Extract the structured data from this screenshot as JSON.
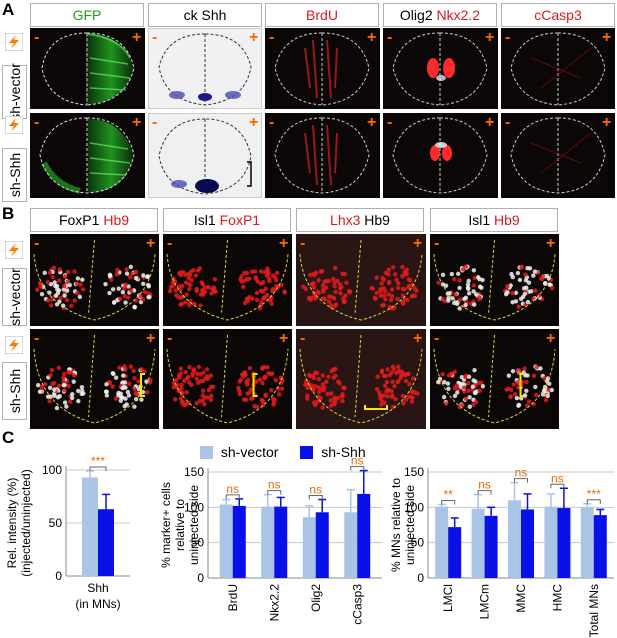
{
  "panels": {
    "A": "A",
    "B": "B",
    "C": "C"
  },
  "rows": {
    "vector": "sh-vector",
    "shh": "sh-Shh"
  },
  "signs": {
    "minus": "-",
    "plus": "+"
  },
  "panelA_headers": [
    {
      "parts": [
        {
          "t": "GFP",
          "c": "green"
        }
      ]
    },
    {
      "parts": [
        {
          "t": "ck Shh",
          "c": "black"
        }
      ]
    },
    {
      "parts": [
        {
          "t": "BrdU",
          "c": "red"
        }
      ]
    },
    {
      "parts": [
        {
          "t": "Olig2 ",
          "c": "black"
        },
        {
          "t": "Nkx2.2",
          "c": "red"
        }
      ]
    },
    {
      "parts": [
        {
          "t": "cCasp3",
          "c": "red"
        }
      ]
    }
  ],
  "panelB_headers": [
    {
      "parts": [
        {
          "t": "FoxP1 ",
          "c": "black"
        },
        {
          "t": "Hb9",
          "c": "red"
        }
      ]
    },
    {
      "parts": [
        {
          "t": "Isl1 ",
          "c": "black"
        },
        {
          "t": "FoxP1",
          "c": "red"
        }
      ]
    },
    {
      "parts": [
        {
          "t": "Lhx3 ",
          "c": "red"
        },
        {
          "t": "Hb9",
          "c": "black"
        }
      ]
    },
    {
      "parts": [
        {
          "t": "Isl1 ",
          "c": "black"
        },
        {
          "t": "Hb9",
          "c": "red"
        }
      ]
    }
  ],
  "legend": {
    "vector": "sh-vector",
    "shh": "sh-Shh"
  },
  "colors": {
    "vector": "#a9c4e4",
    "shh": "#0a10e8",
    "sig": "#e36c0a",
    "red": "#e0191d",
    "green": "#1aa01a"
  },
  "chart_data": [
    {
      "type": "bar",
      "ylabel": "Rel. intensity (%) (injected/uninjected)",
      "categories": [
        "Shh (in MNs)"
      ],
      "series": [
        {
          "name": "sh-vector",
          "values": [
            93
          ]
        },
        {
          "name": "sh-Shh",
          "values": [
            63
          ]
        }
      ],
      "errors": [
        [
          6
        ],
        [
          14
        ]
      ],
      "significance": [
        "***"
      ],
      "ylim": [
        0,
        100
      ],
      "yticks": [
        0,
        50,
        100
      ]
    },
    {
      "type": "bar",
      "ylabel": "% marker+ cells relative to uninjected side",
      "categories": [
        "BrdU",
        "Nkx2.2",
        "Olig2",
        "cCasp3"
      ],
      "series": [
        {
          "name": "sh-vector",
          "values": [
            104,
            101,
            86,
            93
          ]
        },
        {
          "name": "sh-Shh",
          "values": [
            102,
            101,
            93,
            119
          ]
        }
      ],
      "errors": [
        [
          7,
          17,
          16,
          32
        ],
        [
          10,
          13,
          18,
          33
        ]
      ],
      "significance": [
        "ns",
        "ns",
        "ns",
        "ns"
      ],
      "ylim": [
        0,
        150
      ],
      "yticks": [
        0,
        50,
        100,
        150
      ]
    },
    {
      "type": "bar",
      "ylabel": "% MNs relative to uninjected side",
      "categories": [
        "LMCl",
        "LMCm",
        "MMC",
        "HMC",
        "Total MNs"
      ],
      "series": [
        {
          "name": "sh-vector",
          "values": [
            101,
            98,
            110,
            101,
            100
          ]
        },
        {
          "name": "sh-Shh",
          "values": [
            72,
            88,
            97,
            99,
            89
          ]
        }
      ],
      "errors": [
        [
          3,
          20,
          25,
          18,
          5
        ],
        [
          13,
          12,
          22,
          28,
          8
        ]
      ],
      "significance": [
        "**",
        "ns",
        "ns",
        "ns",
        "***"
      ],
      "ylim": [
        0,
        150
      ],
      "yticks": [
        0,
        50,
        100,
        150
      ]
    }
  ]
}
